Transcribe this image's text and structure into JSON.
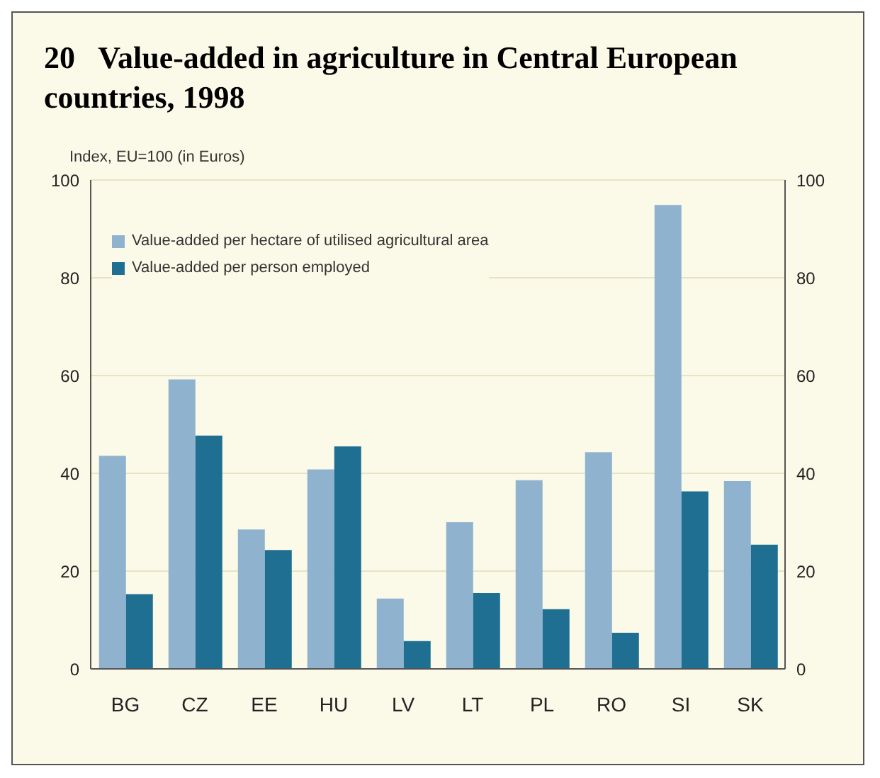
{
  "chart_data": {
    "type": "bar",
    "title": "20   Value-added in agriculture in Central European countries, 1998",
    "ylabel": "Index, EU=100 (in Euros)",
    "categories": [
      "BG",
      "CZ",
      "EE",
      "HU",
      "LV",
      "LT",
      "PL",
      "RO",
      "SI",
      "SK"
    ],
    "series": [
      {
        "name": "Value-added per hectare of utilised agricultural area",
        "color": "#8fb3cf",
        "values": [
          43.6,
          59.2,
          28.5,
          40.8,
          14.4,
          30,
          38.6,
          44.3,
          94.9,
          38.4
        ]
      },
      {
        "name": "Value-added per person employed",
        "color": "#1f6f93",
        "values": [
          15.3,
          47.7,
          24.3,
          45.5,
          5.7,
          15.5,
          12.2,
          7.4,
          36.3,
          25.4
        ]
      }
    ],
    "ylim": [
      0,
      100
    ],
    "yticks": [
      0,
      20,
      40,
      60,
      80,
      100
    ],
    "y2lim": [
      0,
      100
    ],
    "y2ticks": [
      0,
      20,
      40,
      60,
      80,
      100
    ],
    "grid": "y",
    "legend": "top left"
  }
}
